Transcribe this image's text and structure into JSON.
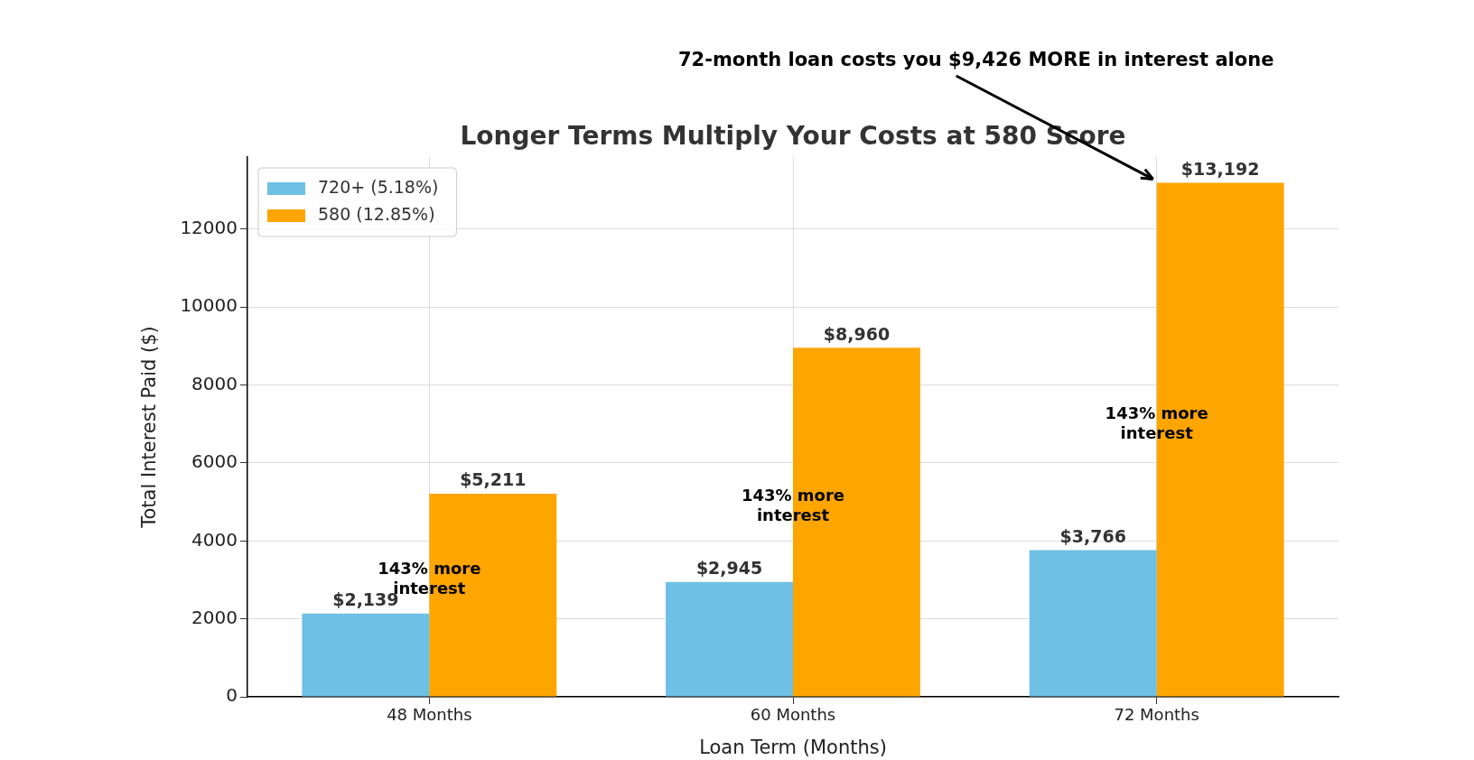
{
  "chart_data": {
    "type": "bar",
    "title": "Longer Terms Multiply Your Costs at 580 Score",
    "xlabel": "Loan Term (Months)",
    "ylabel": "Total Interest Paid ($)",
    "categories": [
      "48 Months",
      "60 Months",
      "72 Months"
    ],
    "series": [
      {
        "name": "720+ (5.18%)",
        "color": "#6ec0e4",
        "values": [
          2139,
          2945,
          3766
        ],
        "value_labels": [
          "$2,139",
          "$2,945",
          "$3,766"
        ]
      },
      {
        "name": "580 (12.85%)",
        "color": "#ffa500",
        "values": [
          5211,
          8960,
          13192
        ],
        "value_labels": [
          "$5,211",
          "$8,960",
          "$13,192"
        ]
      }
    ],
    "ylim": [
      0,
      13852
    ],
    "yticks": [
      0,
      2000,
      4000,
      6000,
      8000,
      10000,
      12000
    ],
    "grid": true,
    "legend": "top left",
    "annotations": [
      {
        "text": "143% more\ninterest",
        "x": "48 Months",
        "y": 3000
      },
      {
        "text": "143% more\ninterest",
        "x": "60 Months",
        "y": 4870
      },
      {
        "text": "143% more\ninterest",
        "x": "72 Months",
        "y": 6990
      },
      "72-month loan costs you $9,426 MORE in interest alone"
    ]
  }
}
